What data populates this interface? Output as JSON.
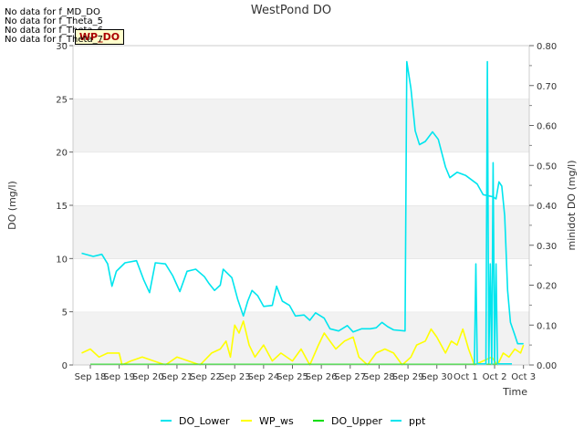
{
  "nodata_messages": [
    "No data for f_MD_DO",
    "No data for f_Theta_5",
    "No data for f_Theta_6",
    "No data for f_Theta_7"
  ],
  "badge": "WP_DO",
  "chart_data": {
    "type": "line",
    "title": "WestPond DO",
    "xlabel": "Time",
    "ylabel_left": "DO (mg/l)",
    "ylabel_right": "minidot DO (mg/l)",
    "ylim_left": [
      0,
      30
    ],
    "ylim_right": [
      0,
      0.8
    ],
    "xlim": [
      -0.6,
      15.2
    ],
    "x_tick_values": [
      0,
      1,
      2,
      3,
      4,
      5,
      6,
      7,
      8,
      9,
      10,
      11,
      12,
      13,
      14,
      15
    ],
    "x_tick_labels": [
      "Sep 18",
      "Sep 19",
      "Sep 20",
      "Sep 21",
      "Sep 22",
      "Sep 23",
      "Sep 24",
      "Sep 25",
      "Sep 26",
      "Sep 27",
      "Sep 28",
      "Sep 29",
      "Sep 30",
      "Oct 1",
      "Oct 2",
      "Oct 3"
    ],
    "y_ticks_left": [
      "0",
      "5",
      "10",
      "15",
      "20",
      "25",
      "30"
    ],
    "y_ticks_right": [
      "0.00",
      "0.10",
      "0.20",
      "0.30",
      "0.40",
      "0.50",
      "0.60",
      "0.70",
      "0.80"
    ],
    "grid": "horizontal bands",
    "legend_position": "bottom",
    "series": [
      {
        "name": "DO_Lower",
        "color": "#00e5ee",
        "axis": "left",
        "points": [
          [
            -0.3,
            10.5
          ],
          [
            0.1,
            10.2
          ],
          [
            0.4,
            10.4
          ],
          [
            0.6,
            9.5
          ],
          [
            0.75,
            7.4
          ],
          [
            0.9,
            8.8
          ],
          [
            1.2,
            9.6
          ],
          [
            1.6,
            9.8
          ],
          [
            1.85,
            8.0
          ],
          [
            2.05,
            6.8
          ],
          [
            2.25,
            9.6
          ],
          [
            2.6,
            9.5
          ],
          [
            2.85,
            8.4
          ],
          [
            3.1,
            6.9
          ],
          [
            3.35,
            8.8
          ],
          [
            3.65,
            9.0
          ],
          [
            3.95,
            8.3
          ],
          [
            4.1,
            7.7
          ],
          [
            4.3,
            7.0
          ],
          [
            4.5,
            7.5
          ],
          [
            4.6,
            9.0
          ],
          [
            4.9,
            8.2
          ],
          [
            5.1,
            6.2
          ],
          [
            5.3,
            4.6
          ],
          [
            5.45,
            6.0
          ],
          [
            5.6,
            7.0
          ],
          [
            5.8,
            6.5
          ],
          [
            6.0,
            5.5
          ],
          [
            6.3,
            5.6
          ],
          [
            6.45,
            7.4
          ],
          [
            6.65,
            6.0
          ],
          [
            6.9,
            5.6
          ],
          [
            7.1,
            4.6
          ],
          [
            7.4,
            4.7
          ],
          [
            7.6,
            4.2
          ],
          [
            7.8,
            4.9
          ],
          [
            8.1,
            4.4
          ],
          [
            8.3,
            3.4
          ],
          [
            8.6,
            3.2
          ],
          [
            8.9,
            3.7
          ],
          [
            9.1,
            3.1
          ],
          [
            9.4,
            3.4
          ],
          [
            9.7,
            3.4
          ],
          [
            9.9,
            3.5
          ],
          [
            10.1,
            4.0
          ],
          [
            10.3,
            3.6
          ],
          [
            10.5,
            3.3
          ],
          [
            10.9,
            3.2
          ],
          [
            10.96,
            28.5
          ],
          [
            11.1,
            26.0
          ],
          [
            11.25,
            22.0
          ],
          [
            11.4,
            20.7
          ],
          [
            11.6,
            21.0
          ],
          [
            11.85,
            21.9
          ],
          [
            12.05,
            21.2
          ],
          [
            12.3,
            18.6
          ],
          [
            12.45,
            17.6
          ],
          [
            12.7,
            18.1
          ],
          [
            13.0,
            17.8
          ],
          [
            13.4,
            17.0
          ],
          [
            13.6,
            16.0
          ],
          [
            13.95,
            15.8
          ],
          [
            14.05,
            15.6
          ],
          [
            14.15,
            17.2
          ],
          [
            14.25,
            16.8
          ],
          [
            14.35,
            14.0
          ],
          [
            14.45,
            7.0
          ],
          [
            14.55,
            4.0
          ],
          [
            14.7,
            2.8
          ],
          [
            14.8,
            2.0
          ],
          [
            15.0,
            2.0
          ]
        ]
      },
      {
        "name": "WP_ws",
        "color": "#ffff00",
        "axis": "right",
        "points": [
          [
            -0.3,
            0.03
          ],
          [
            0.0,
            0.04
          ],
          [
            0.3,
            0.02
          ],
          [
            0.6,
            0.03
          ],
          [
            1.0,
            0.03
          ],
          [
            1.1,
            0.0
          ],
          [
            1.4,
            0.01
          ],
          [
            1.8,
            0.02
          ],
          [
            2.2,
            0.01
          ],
          [
            2.6,
            0.0
          ],
          [
            3.0,
            0.02
          ],
          [
            3.4,
            0.01
          ],
          [
            3.8,
            0.0
          ],
          [
            4.2,
            0.03
          ],
          [
            4.5,
            0.04
          ],
          [
            4.7,
            0.06
          ],
          [
            4.85,
            0.02
          ],
          [
            5.0,
            0.1
          ],
          [
            5.15,
            0.08
          ],
          [
            5.3,
            0.11
          ],
          [
            5.5,
            0.05
          ],
          [
            5.7,
            0.02
          ],
          [
            6.0,
            0.05
          ],
          [
            6.3,
            0.01
          ],
          [
            6.6,
            0.03
          ],
          [
            7.0,
            0.01
          ],
          [
            7.3,
            0.04
          ],
          [
            7.6,
            0.0
          ],
          [
            7.9,
            0.05
          ],
          [
            8.1,
            0.08
          ],
          [
            8.3,
            0.06
          ],
          [
            8.5,
            0.04
          ],
          [
            8.8,
            0.06
          ],
          [
            9.1,
            0.07
          ],
          [
            9.3,
            0.02
          ],
          [
            9.6,
            0.0
          ],
          [
            9.9,
            0.03
          ],
          [
            10.2,
            0.04
          ],
          [
            10.5,
            0.03
          ],
          [
            10.8,
            0.0
          ],
          [
            11.1,
            0.02
          ],
          [
            11.3,
            0.05
          ],
          [
            11.6,
            0.06
          ],
          [
            11.8,
            0.09
          ],
          [
            12.0,
            0.07
          ],
          [
            12.3,
            0.03
          ],
          [
            12.5,
            0.06
          ],
          [
            12.7,
            0.05
          ],
          [
            12.9,
            0.09
          ],
          [
            13.1,
            0.04
          ],
          [
            13.3,
            0.0
          ],
          [
            13.6,
            0.01
          ],
          [
            13.9,
            0.02
          ],
          [
            14.1,
            0.0
          ],
          [
            14.3,
            0.03
          ],
          [
            14.5,
            0.02
          ],
          [
            14.7,
            0.04
          ],
          [
            14.9,
            0.03
          ],
          [
            15.0,
            0.05
          ]
        ]
      },
      {
        "name": "DO_Upper",
        "color": "#00dd00",
        "axis": "left",
        "points": [
          [
            0.0,
            0.05
          ],
          [
            14.6,
            0.05
          ]
        ]
      },
      {
        "name": "ppt",
        "color": "#00e5ee",
        "axis": "left",
        "points": [
          [
            13.3,
            0.1
          ],
          [
            13.35,
            9.5
          ],
          [
            13.4,
            0.1
          ],
          [
            13.7,
            0.1
          ],
          [
            13.75,
            28.5
          ],
          [
            13.8,
            0.2
          ],
          [
            13.85,
            9.5
          ],
          [
            13.9,
            0.1
          ],
          [
            13.95,
            19.0
          ],
          [
            14.0,
            0.2
          ],
          [
            14.05,
            9.5
          ],
          [
            14.1,
            0.1
          ],
          [
            14.6,
            0.1
          ]
        ]
      }
    ]
  }
}
